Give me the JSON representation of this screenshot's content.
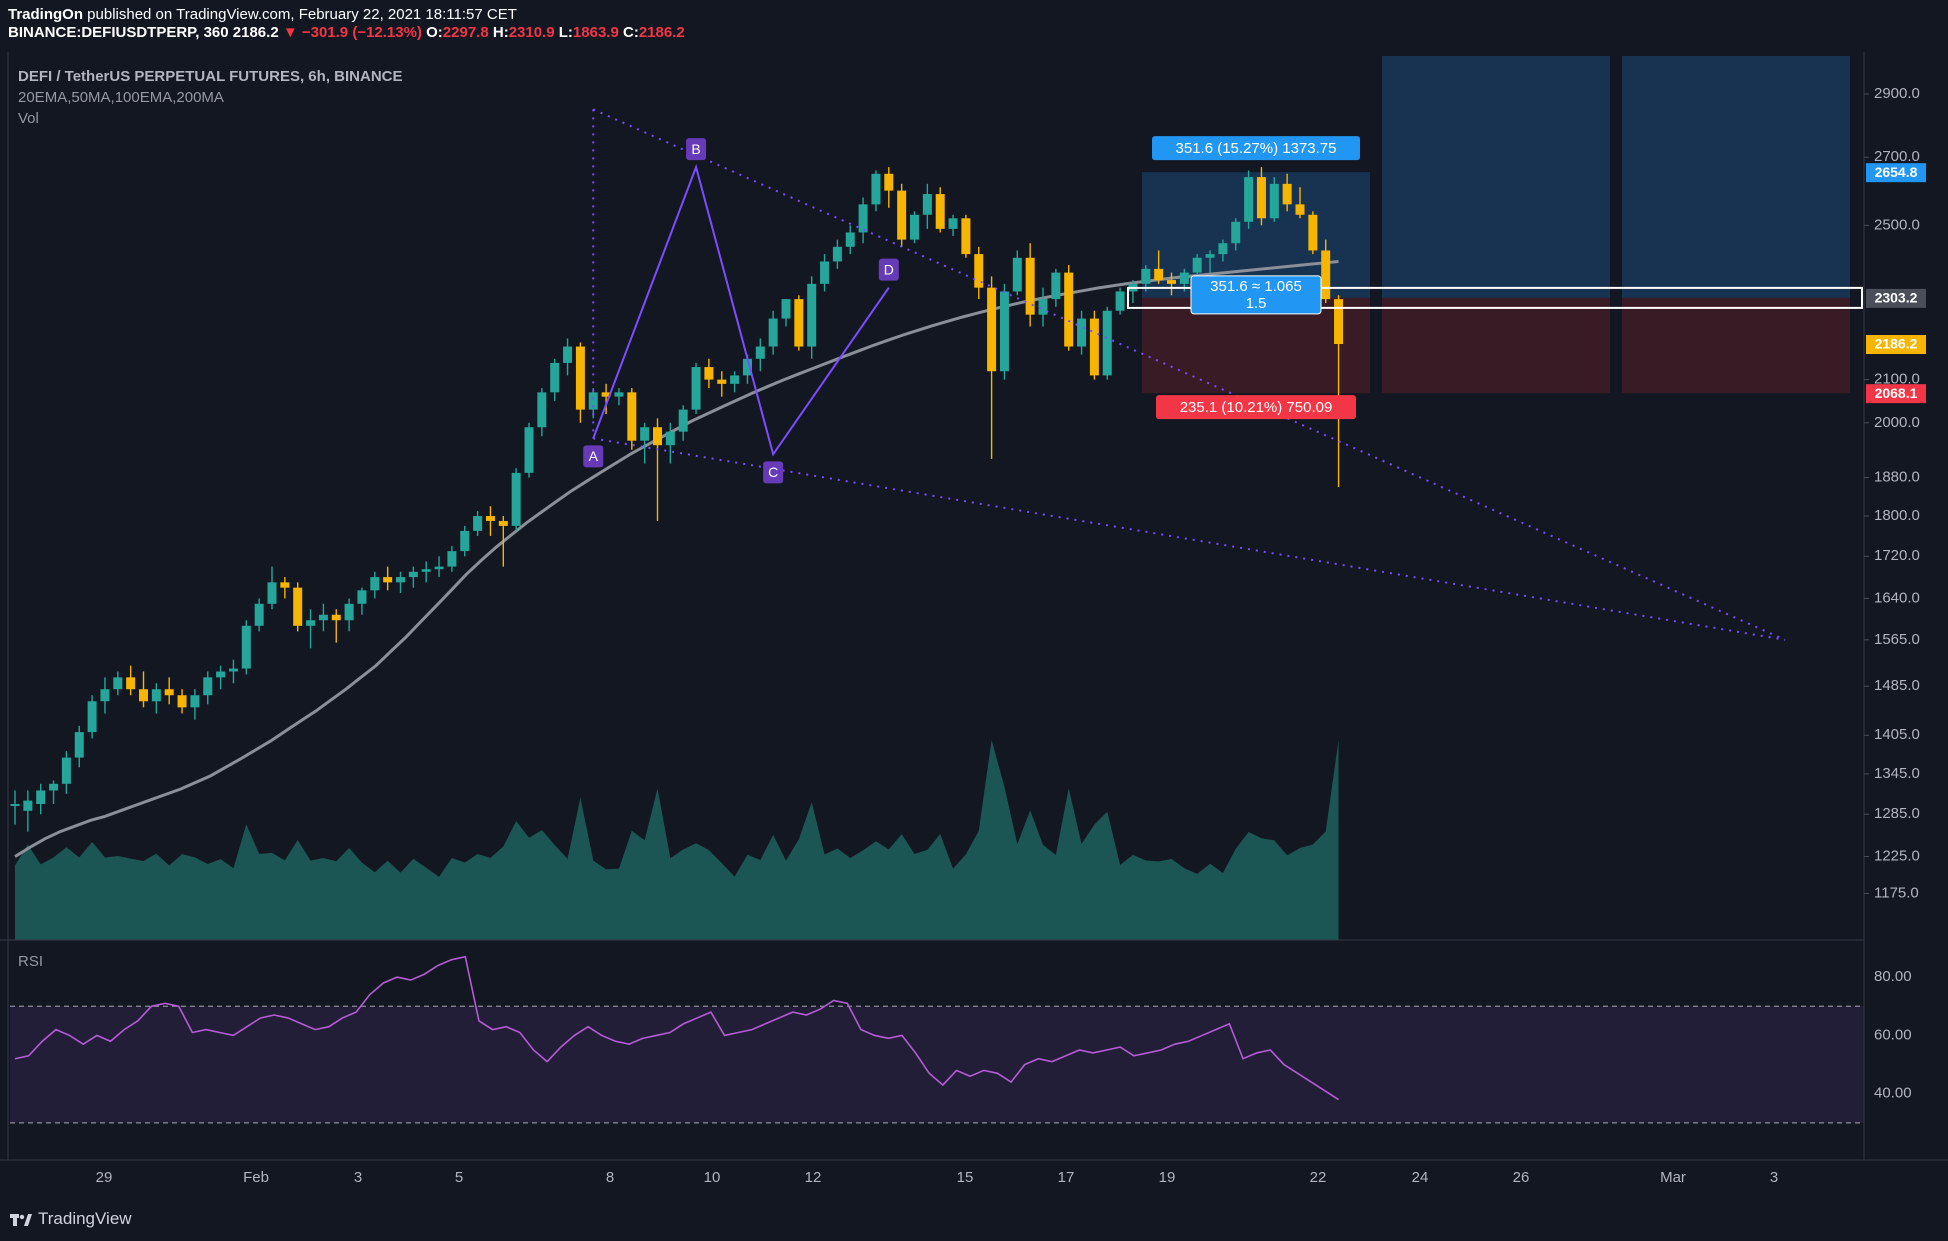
{
  "header": {
    "publisher": "TradingOn",
    "published_text": " published on TradingView.com, February 22, 2021 18:11:57 CET",
    "symbol_line": "BINANCE:DEFIUSDTPERP, 360",
    "last": "2186.2",
    "change": "▼ −301.9 (−12.13%)",
    "o_label": "O:",
    "o": "2297.8",
    "h_label": "H:",
    "h": "2310.9",
    "l_label": "L:",
    "l": "1863.9",
    "c_label": "C:",
    "c": "2186.2"
  },
  "legend": {
    "title": "DEFI / TetherUS PERPETUAL FUTURES, 6h, BINANCE",
    "indicators": "20EMA,50MA,100EMA,200MA",
    "volume": "Vol",
    "rsi": "RSI"
  },
  "colors": {
    "background": "#131722",
    "up": "#26a69a",
    "down": "#f7b500",
    "ma": "#8a8f98",
    "pattern": "#7c4dff",
    "rsi_line": "#b65bd6",
    "target_label": "#2196f3",
    "stop_label": "#f23645"
  },
  "annotations": {
    "pattern_points": [
      "A",
      "B",
      "C",
      "D"
    ],
    "target_text": "351.6 (15.27%) 1373.75",
    "stop_text": "235.1 (10.21%) 750.09",
    "ratio_text_1": "351.6 ≈ 1.065",
    "ratio_text_2": "1.5"
  },
  "price_axis": {
    "ticks": [
      "2900.0",
      "2700.0",
      "2500.0",
      "2100.0",
      "2000.0",
      "1880.0",
      "1800.0",
      "1720.0",
      "1640.0",
      "1565.0",
      "1485.0",
      "1405.0",
      "1345.0",
      "1285.0",
      "1225.0",
      "1175.0"
    ],
    "markers": [
      {
        "text": "2654.8",
        "color": "#2196f3"
      },
      {
        "text": "2303.2",
        "color": "#4a4e58"
      },
      {
        "text": "2186.2",
        "color": "#f7b500"
      },
      {
        "text": "2068.1",
        "color": "#f23645"
      }
    ]
  },
  "rsi_axis": {
    "ticks": [
      "80.00",
      "60.00",
      "40.00"
    ]
  },
  "time_axis": {
    "ticks": [
      "29",
      "Feb",
      "3",
      "5",
      "8",
      "10",
      "12",
      "15",
      "17",
      "19",
      "22",
      "24",
      "26",
      "Mar",
      "3"
    ]
  },
  "footer": {
    "brand": "TradingView"
  },
  "chart_data": {
    "type": "candlestick",
    "title": "DEFI / TetherUS PERPETUAL FUTURES, 6h, BINANCE",
    "interval": "6h",
    "scale": "log",
    "ylim": [
      1130,
      3000
    ],
    "x": "sequential 6h bars from Jan 27, 2021 to Feb 22, 2021",
    "series": [
      {
        "name": "DEFI/USDT",
        "ohlc": [
          [
            1300,
            1320,
            1270,
            1300
          ],
          [
            1290,
            1320,
            1260,
            1305
          ],
          [
            1300,
            1330,
            1285,
            1320
          ],
          [
            1320,
            1335,
            1300,
            1330
          ],
          [
            1330,
            1380,
            1315,
            1370
          ],
          [
            1370,
            1420,
            1355,
            1410
          ],
          [
            1410,
            1470,
            1400,
            1460
          ],
          [
            1460,
            1500,
            1440,
            1480
          ],
          [
            1480,
            1510,
            1470,
            1500
          ],
          [
            1500,
            1520,
            1470,
            1480
          ],
          [
            1480,
            1510,
            1450,
            1460
          ],
          [
            1460,
            1490,
            1440,
            1480
          ],
          [
            1480,
            1500,
            1455,
            1470
          ],
          [
            1470,
            1480,
            1440,
            1450
          ],
          [
            1450,
            1480,
            1430,
            1470
          ],
          [
            1470,
            1510,
            1455,
            1500
          ],
          [
            1500,
            1520,
            1480,
            1510
          ],
          [
            1510,
            1530,
            1490,
            1515
          ],
          [
            1515,
            1600,
            1505,
            1590
          ],
          [
            1590,
            1640,
            1580,
            1630
          ],
          [
            1630,
            1700,
            1620,
            1670
          ],
          [
            1670,
            1680,
            1640,
            1660
          ],
          [
            1660,
            1670,
            1580,
            1590
          ],
          [
            1590,
            1620,
            1550,
            1600
          ],
          [
            1600,
            1630,
            1580,
            1610
          ],
          [
            1610,
            1620,
            1560,
            1600
          ],
          [
            1600,
            1640,
            1580,
            1630
          ],
          [
            1630,
            1660,
            1610,
            1655
          ],
          [
            1655,
            1690,
            1640,
            1680
          ],
          [
            1680,
            1700,
            1655,
            1670
          ],
          [
            1670,
            1690,
            1650,
            1680
          ],
          [
            1680,
            1700,
            1660,
            1690
          ],
          [
            1690,
            1710,
            1670,
            1695
          ],
          [
            1695,
            1720,
            1680,
            1700
          ],
          [
            1700,
            1740,
            1690,
            1730
          ],
          [
            1730,
            1780,
            1720,
            1770
          ],
          [
            1770,
            1810,
            1760,
            1800
          ],
          [
            1800,
            1820,
            1760,
            1790
          ],
          [
            1790,
            1800,
            1700,
            1780
          ],
          [
            1780,
            1900,
            1770,
            1890
          ],
          [
            1890,
            2000,
            1880,
            1990
          ],
          [
            1990,
            2080,
            1970,
            2070
          ],
          [
            2070,
            2150,
            2050,
            2140
          ],
          [
            2140,
            2200,
            2110,
            2180
          ],
          [
            2180,
            2190,
            2000,
            2030
          ],
          [
            2030,
            2080,
            2010,
            2070
          ],
          [
            2070,
            2090,
            2020,
            2060
          ],
          [
            2060,
            2080,
            2040,
            2070
          ],
          [
            2070,
            2080,
            1940,
            1960
          ],
          [
            1960,
            2000,
            1910,
            1990
          ],
          [
            1990,
            2010,
            1790,
            1950
          ],
          [
            1950,
            2000,
            1910,
            1980
          ],
          [
            1980,
            2040,
            1960,
            2030
          ],
          [
            2030,
            2140,
            2020,
            2130
          ],
          [
            2130,
            2150,
            2080,
            2100
          ],
          [
            2100,
            2120,
            2060,
            2090
          ],
          [
            2090,
            2120,
            2070,
            2110
          ],
          [
            2110,
            2160,
            2090,
            2150
          ],
          [
            2150,
            2200,
            2120,
            2180
          ],
          [
            2180,
            2270,
            2160,
            2250
          ],
          [
            2250,
            2300,
            2230,
            2300
          ],
          [
            2300,
            2310,
            2170,
            2180
          ],
          [
            2180,
            2360,
            2150,
            2340
          ],
          [
            2340,
            2420,
            2320,
            2400
          ],
          [
            2400,
            2460,
            2380,
            2440
          ],
          [
            2440,
            2500,
            2420,
            2480
          ],
          [
            2480,
            2580,
            2450,
            2560
          ],
          [
            2560,
            2660,
            2540,
            2650
          ],
          [
            2650,
            2670,
            2550,
            2600
          ],
          [
            2600,
            2620,
            2440,
            2460
          ],
          [
            2460,
            2540,
            2450,
            2530
          ],
          [
            2530,
            2620,
            2490,
            2590
          ],
          [
            2590,
            2610,
            2480,
            2490
          ],
          [
            2490,
            2530,
            2470,
            2520
          ],
          [
            2520,
            2530,
            2410,
            2420
          ],
          [
            2420,
            2440,
            2300,
            2330
          ],
          [
            2330,
            2360,
            1920,
            2120
          ],
          [
            2120,
            2340,
            2100,
            2320
          ],
          [
            2320,
            2430,
            2310,
            2410
          ],
          [
            2410,
            2450,
            2230,
            2260
          ],
          [
            2260,
            2330,
            2230,
            2300
          ],
          [
            2300,
            2380,
            2280,
            2370
          ],
          [
            2370,
            2390,
            2170,
            2180
          ],
          [
            2180,
            2270,
            2160,
            2250
          ],
          [
            2250,
            2270,
            2100,
            2110
          ],
          [
            2110,
            2280,
            2100,
            2270
          ],
          [
            2270,
            2330,
            2260,
            2320
          ],
          [
            2320,
            2350,
            2290,
            2340
          ],
          [
            2340,
            2390,
            2320,
            2380
          ],
          [
            2380,
            2430,
            2340,
            2350
          ],
          [
            2350,
            2370,
            2310,
            2340
          ],
          [
            2340,
            2380,
            2320,
            2370
          ],
          [
            2370,
            2420,
            2350,
            2410
          ],
          [
            2410,
            2430,
            2370,
            2420
          ],
          [
            2420,
            2460,
            2400,
            2450
          ],
          [
            2450,
            2520,
            2430,
            2510
          ],
          [
            2510,
            2660,
            2490,
            2640
          ],
          [
            2640,
            2670,
            2500,
            2520
          ],
          [
            2520,
            2640,
            2510,
            2620
          ],
          [
            2620,
            2650,
            2540,
            2560
          ],
          [
            2560,
            2610,
            2520,
            2530
          ],
          [
            2530,
            2540,
            2420,
            2430
          ],
          [
            2430,
            2460,
            2290,
            2300
          ],
          [
            2300,
            2310,
            1860,
            2186.2
          ]
        ]
      },
      {
        "name": "MA",
        "values": [
          1225,
          1238,
          1250,
          1260,
          1268,
          1276,
          1282,
          1290,
          1298,
          1306,
          1314,
          1322,
          1332,
          1342,
          1355,
          1368,
          1382,
          1396,
          1412,
          1428,
          1444,
          1462,
          1480,
          1500,
          1520,
          1545,
          1570,
          1598,
          1626,
          1655,
          1685,
          1712,
          1738,
          1762,
          1786,
          1808,
          1830,
          1852,
          1872,
          1892,
          1912,
          1932,
          1950,
          1968,
          1986,
          2004,
          2020,
          2036,
          2052,
          2068,
          2083,
          2098,
          2112,
          2126,
          2140,
          2154,
          2168,
          2182,
          2195,
          2208,
          2220,
          2232,
          2243,
          2254,
          2264,
          2274,
          2283,
          2292,
          2300,
          2308,
          2315,
          2322,
          2329,
          2335,
          2341,
          2346,
          2351,
          2356,
          2360,
          2364,
          2368,
          2372,
          2376,
          2380,
          2384,
          2388,
          2392,
          2396,
          2400
        ]
      },
      {
        "name": "Vol",
        "values": []
      },
      {
        "name": "RSI",
        "values": [
          52,
          53,
          58,
          62,
          60,
          57,
          60,
          58,
          62,
          65,
          70,
          71,
          70,
          61,
          62,
          61,
          60,
          63,
          66,
          67,
          66,
          64,
          62,
          63,
          66,
          68,
          74,
          78,
          80,
          79,
          81,
          84,
          86,
          87,
          65,
          62,
          63,
          61,
          55,
          51,
          56,
          60,
          63,
          60,
          58,
          57,
          59,
          60,
          61,
          64,
          66,
          68,
          60,
          61,
          62,
          64,
          66,
          68,
          67,
          69,
          72,
          71,
          62,
          60,
          59,
          60,
          54,
          47,
          43,
          48,
          46,
          48,
          47,
          44,
          50,
          52,
          51,
          53,
          55,
          54,
          55,
          56,
          53,
          54,
          55,
          57,
          58,
          60,
          62,
          64,
          52,
          54,
          55,
          50,
          47,
          44,
          41,
          38
        ]
      }
    ]
  }
}
